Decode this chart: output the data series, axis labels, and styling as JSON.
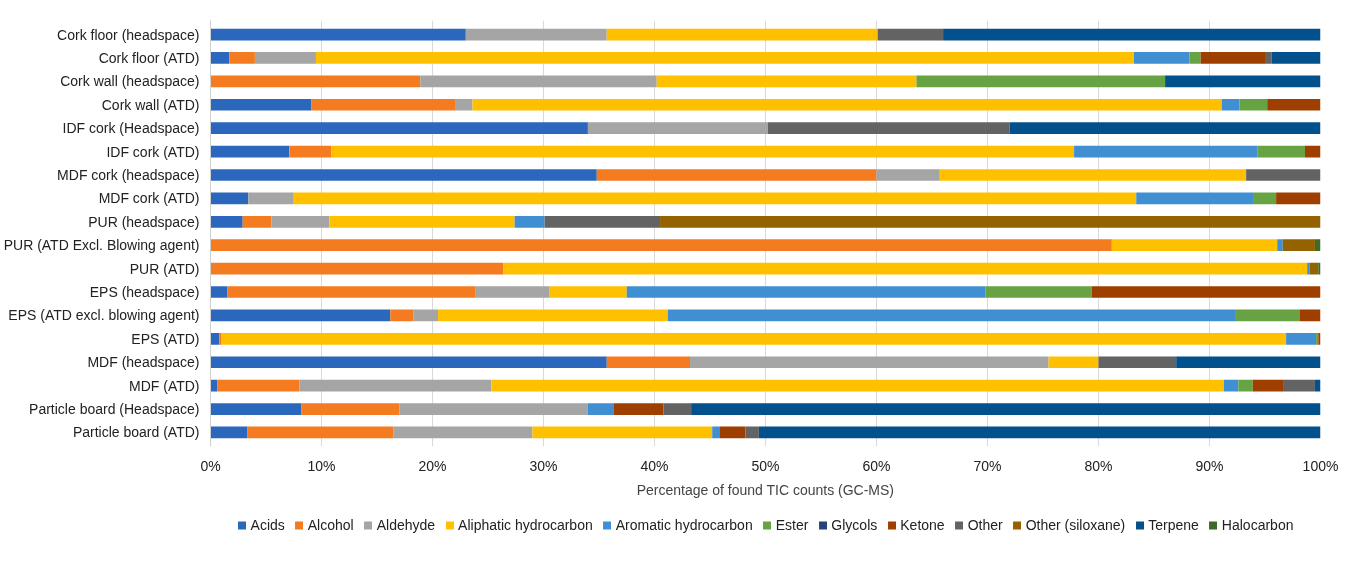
{
  "chart_data": {
    "type": "bar",
    "orientation": "horizontal",
    "stacked": true,
    "xlabel": "Percentage of found TIC counts (GC-MS)",
    "categories": [
      "Cork floor (headspace)",
      "Cork floor (ATD)",
      "Cork wall (headspace)",
      "Cork wall (ATD)",
      "IDF cork (Headspace)",
      "IDF cork (ATD)",
      "MDF cork (headspace)",
      "MDF cork (ATD)",
      "PUR (headspace)",
      "PUR (ATD Excl. Blowing agent)",
      "PUR (ATD)",
      "EPS (headspace)",
      "EPS (ATD excl. blowing agent)",
      "EPS (ATD)",
      "MDF (headspace)",
      "MDF (ATD)",
      "Particle board (Headspace)",
      "Particle board (ATD)"
    ],
    "series": [
      {
        "name": "Acids",
        "color": "#2a67bd",
        "values": [
          23.0,
          1.7,
          null,
          9.1,
          34.0,
          7.1,
          34.8,
          3.4,
          2.9,
          null,
          null,
          1.5,
          16.2,
          0.8,
          35.7,
          0.6,
          8.2,
          3.3
        ]
      },
      {
        "name": "Alcohol",
        "color": "#f47b20",
        "values": [
          null,
          2.3,
          18.9,
          13.0,
          null,
          3.8,
          25.2,
          null,
          2.6,
          81.2,
          26.4,
          22.4,
          2.1,
          0.2,
          7.5,
          7.4,
          8.8,
          13.2
        ]
      },
      {
        "name": "Aldehyde",
        "color": "#a5a5a5",
        "values": [
          12.7,
          5.5,
          21.3,
          1.5,
          16.2,
          null,
          5.7,
          4.1,
          5.2,
          null,
          null,
          6.6,
          2.2,
          null,
          32.3,
          17.3,
          17.0,
          12.5
        ]
      },
      {
        "name": "Aliphatic hydrocarbon",
        "color": "#ffc000",
        "values": [
          24.4,
          73.7,
          23.4,
          67.5,
          null,
          66.9,
          27.6,
          75.9,
          16.7,
          14.9,
          72.4,
          7.0,
          20.7,
          95.9,
          4.5,
          66.0,
          null,
          16.2
        ]
      },
      {
        "name": "Aromatic hydrocarbon",
        "color": "#3f8fd2",
        "values": [
          null,
          5.0,
          null,
          1.6,
          null,
          16.5,
          null,
          10.6,
          2.7,
          0.5,
          0.2,
          32.3,
          51.1,
          2.7,
          null,
          1.3,
          2.3,
          0.7
        ]
      },
      {
        "name": "Ester",
        "color": "#67a342",
        "values": [
          null,
          1.0,
          22.4,
          2.5,
          null,
          4.3,
          null,
          2.0,
          null,
          null,
          null,
          9.6,
          5.8,
          0.2,
          null,
          1.3,
          null,
          null
        ]
      },
      {
        "name": "Glycols",
        "color": "#264478",
        "values": [
          null,
          null,
          null,
          null,
          null,
          null,
          null,
          null,
          null,
          null,
          null,
          null,
          null,
          null,
          null,
          null,
          null,
          null
        ]
      },
      {
        "name": "Ketone",
        "color": "#9e3f00",
        "values": [
          null,
          5.8,
          null,
          4.8,
          null,
          1.4,
          null,
          4.0,
          null,
          null,
          null,
          20.6,
          1.9,
          0.2,
          null,
          2.8,
          4.5,
          2.3
        ]
      },
      {
        "name": "Other",
        "color": "#636363",
        "values": [
          5.9,
          0.6,
          null,
          null,
          21.8,
          null,
          6.7,
          null,
          10.4,
          null,
          null,
          null,
          null,
          null,
          7.0,
          2.8,
          2.5,
          1.2
        ]
      },
      {
        "name": "Other (siloxane)",
        "color": "#946200",
        "values": [
          null,
          null,
          null,
          null,
          null,
          null,
          null,
          null,
          59.5,
          2.9,
          0.8,
          null,
          null,
          null,
          null,
          null,
          null,
          null
        ]
      },
      {
        "name": "Terpene",
        "color": "#02508c",
        "values": [
          34.0,
          4.4,
          14.0,
          null,
          28.0,
          null,
          null,
          null,
          null,
          null,
          null,
          null,
          null,
          null,
          13.0,
          0.5,
          56.7,
          50.6
        ]
      },
      {
        "name": "Halocarbon",
        "color": "#3e6b28",
        "values": [
          null,
          null,
          null,
          null,
          null,
          null,
          null,
          null,
          null,
          0.5,
          0.2,
          null,
          null,
          null,
          null,
          null,
          null,
          null
        ]
      }
    ],
    "xlim": [
      0,
      100
    ],
    "xticks": [
      {
        "value": 0,
        "label": "0%"
      },
      {
        "value": 10,
        "label": "10%"
      },
      {
        "value": 20,
        "label": "20%"
      },
      {
        "value": 30,
        "label": "30%"
      },
      {
        "value": 40,
        "label": "40%"
      },
      {
        "value": 50,
        "label": "50%"
      },
      {
        "value": 60,
        "label": "60%"
      },
      {
        "value": 70,
        "label": "70%"
      },
      {
        "value": 80,
        "label": "80%"
      },
      {
        "value": 90,
        "label": "90%"
      },
      {
        "value": 100,
        "label": "100%"
      }
    ],
    "grid": "x",
    "legend": "bottom"
  }
}
